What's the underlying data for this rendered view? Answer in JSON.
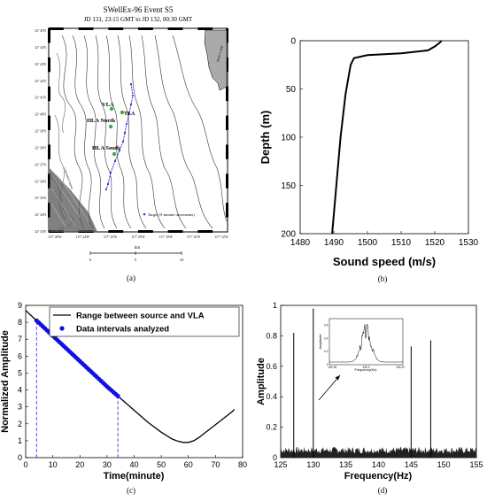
{
  "panels": {
    "a": {
      "caption": "(a)",
      "title": "SWellEx-96 Event S5",
      "subtitle": "JD 131, 23:15 GMT to JD 132, 00:30 GMT",
      "labels": {
        "vla": "VLA",
        "tla": "TLA",
        "hla_north": "HLA North",
        "hla_south": "HLA South",
        "target": "Target (5-minute increments)",
        "point_loma": "Point Loma",
        "canyon": "Coronado Canyon"
      },
      "lat_ticks": [
        "32° 45'N",
        "32° 44'N",
        "32° 43'N",
        "32° 42'N",
        "32° 41'N",
        "32° 40'N",
        "32° 39'N",
        "32° 38'N",
        "32° 37'N",
        "32° 36'N",
        "32° 35'N",
        "32° 34'N",
        "32° 33'N"
      ],
      "lon_ticks": [
        "117° 26'W",
        "117° 24'W",
        "117° 22'W",
        "117° 20'W",
        "117° 18'W",
        "117° 16'W",
        "117° 14'W"
      ],
      "scale_label": "km",
      "scale_ticks": [
        "0",
        "5",
        "10"
      ],
      "colors": {
        "track": "#3333cc",
        "array": "#44aa44",
        "land": "#aaaaaa"
      }
    },
    "b": {
      "caption": "(b)",
      "chart_data": {
        "type": "line",
        "xlabel": "Sound speed (m/s)",
        "ylabel": "Depth (m)",
        "xlim": [
          1480,
          1530
        ],
        "ylim": [
          0,
          200
        ],
        "y_inverted": true,
        "xticks": [
          "1480",
          "1490",
          "1500",
          "1510",
          "1520",
          "1530"
        ],
        "yticks": [
          "0",
          "50",
          "100",
          "150",
          "200"
        ],
        "series": [
          {
            "points": [
              [
                1522,
                0
              ],
              [
                1521.5,
                2
              ],
              [
                1520,
                6
              ],
              [
                1518,
                10
              ],
              [
                1510,
                13
              ],
              [
                1500,
                15
              ],
              [
                1496,
                18
              ],
              [
                1495,
                25
              ],
              [
                1494.5,
                35
              ],
              [
                1494,
                45
              ],
              [
                1493.5,
                55
              ],
              [
                1493,
                70
              ],
              [
                1492.5,
                85
              ],
              [
                1492,
                100
              ],
              [
                1491.5,
                120
              ],
              [
                1491,
                140
              ],
              [
                1490.5,
                160
              ],
              [
                1490,
                180
              ],
              [
                1489.5,
                200
              ]
            ]
          }
        ]
      }
    },
    "c": {
      "caption": "(c)",
      "chart_data": {
        "type": "line",
        "xlabel": "Time(minute)",
        "ylabel": "Normalized Amplitude",
        "xlim": [
          0,
          80
        ],
        "ylim": [
          0,
          9
        ],
        "xticks": [
          "0",
          "10",
          "20",
          "30",
          "40",
          "50",
          "60",
          "70",
          "80"
        ],
        "yticks": [
          "0",
          "1",
          "2",
          "3",
          "4",
          "5",
          "6",
          "7",
          "8",
          "9"
        ],
        "legend_position": "top-right",
        "series": [
          {
            "name": "Range between source and VLA",
            "color": "#000000",
            "x": [
              0,
              5,
              10,
              15,
              20,
              25,
              30,
              35,
              40,
              45,
              50,
              52,
              54,
              56,
              58,
              60,
              62,
              64,
              66,
              68,
              70,
              72,
              74,
              76,
              77
            ],
            "y": [
              8.7,
              7.95,
              7.2,
              6.45,
              5.7,
              4.95,
              4.2,
              3.5,
              2.8,
              2.1,
              1.5,
              1.3,
              1.1,
              0.98,
              0.9,
              0.9,
              1.0,
              1.2,
              1.45,
              1.7,
              1.95,
              2.2,
              2.45,
              2.7,
              2.85
            ]
          },
          {
            "name": "Data intervals analyzed",
            "color": "#1111dd",
            "x_start": 4,
            "x_end": 34,
            "count": 40
          }
        ],
        "vlines": [
          4,
          34
        ]
      }
    },
    "d": {
      "caption": "(d)",
      "chart_data": {
        "type": "line",
        "xlabel": "Frequency(Hz)",
        "ylabel": "Amplitude",
        "xlim": [
          125,
          155
        ],
        "ylim": [
          0,
          1
        ],
        "xticks": [
          "125",
          "130",
          "135",
          "140",
          "145",
          "150",
          "155"
        ],
        "yticks": [
          "0",
          "0.2",
          "0.4",
          "0.6",
          "0.8",
          "1"
        ],
        "peaks": [
          {
            "x": 127,
            "y": 0.82
          },
          {
            "x": 130,
            "y": 0.98
          },
          {
            "x": 145,
            "y": 0.73
          },
          {
            "x": 148,
            "y": 0.77
          }
        ],
        "noise_floor": 0.06,
        "inset": {
          "xlabel": "Frequency(Hz)",
          "ylabel": "Amplitude",
          "xticks": [
            "130.18",
            "130.2",
            "130.22"
          ],
          "yticks": [
            "0",
            "0.2",
            "0.4",
            "0.6"
          ],
          "peak_x": 130.2,
          "peak_y": 0.6
        }
      }
    }
  }
}
